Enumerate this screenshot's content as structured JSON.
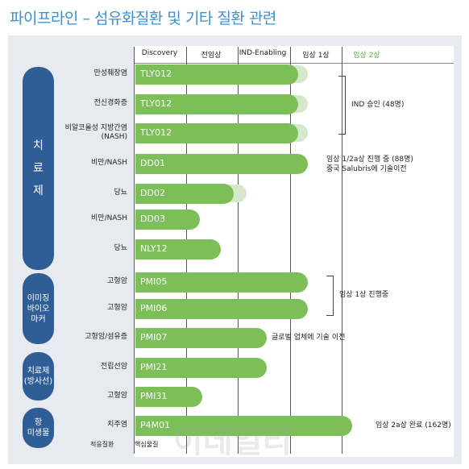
{
  "title": "파이프라인 – 섬유화질환 및 기타 질환 관련",
  "watermark": "이데일리",
  "colors": {
    "bar": "#7cbf59",
    "group": "#2f5d95",
    "title": "#3f8fd0",
    "panel": "#e7ebef"
  },
  "chart_data": {
    "type": "bar",
    "orientation": "horizontal",
    "title": "파이프라인 – 섬유화질환 및 기타 질환 관련",
    "phases": [
      "Discovery",
      "전임상",
      "IND-Enabling",
      "임상 1상",
      "임상 2상"
    ],
    "groups": [
      {
        "label": "치\n료\n제"
      },
      {
        "label": "이미징\n바이오\n마커"
      },
      {
        "label": "치료제\n(방사선)"
      },
      {
        "label": "항\n미생물"
      }
    ],
    "rows": [
      {
        "indication": "만성췌장염",
        "code": "TLY012",
        "stage": 3.15
      },
      {
        "indication": "전신경화증",
        "code": "TLY012",
        "stage": 3.15
      },
      {
        "indication": "비알코올성 지방간염\n(NASH)",
        "code": "TLY012",
        "stage": 3.15
      },
      {
        "indication": "비만/NASH",
        "code": "DD01",
        "stage": 3.35
      },
      {
        "indication": "당뇨",
        "code": "DD02",
        "stage": 1.9
      },
      {
        "indication": "비만/NASH",
        "code": "DD03",
        "stage": 1.25
      },
      {
        "indication": "당뇨",
        "code": "NLY12",
        "stage": 1.65
      },
      {
        "indication": "고형암",
        "code": "PMI05",
        "stage": 3.35
      },
      {
        "indication": "고형암",
        "code": "PMI06",
        "stage": 3.35
      },
      {
        "indication": "고형암/섬유증",
        "code": "PMI07",
        "stage": 2.55
      },
      {
        "indication": "전립선암",
        "code": "PMI21",
        "stage": 2.55
      },
      {
        "indication": "고형암",
        "code": "PMI31",
        "stage": 1.3
      },
      {
        "indication": "치주염",
        "code": "P4M01",
        "stage": 4.2
      }
    ],
    "annotations": [
      "IND 승인 (48명)",
      "임상 1/2a상 진행 중 (88명)\n중국 Salubris에 기술이전",
      "임상 1상 진행중",
      "글로벌 업체에 기술 이전",
      "임상 2a상 완료 (162명)"
    ],
    "footer": [
      "적응질환",
      "핵심물질"
    ]
  }
}
